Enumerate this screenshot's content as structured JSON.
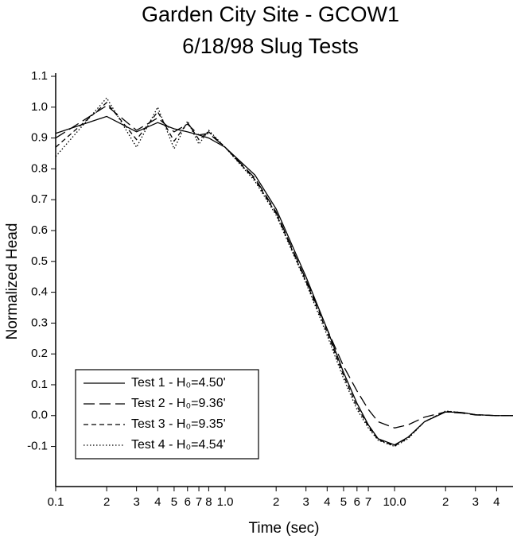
{
  "chart_data": {
    "type": "line",
    "title": "Garden City Site - GCOW1",
    "subtitle": "6/18/98 Slug Tests",
    "xlabel": "Time (sec)",
    "ylabel": "Normalized Head",
    "xscale": "log",
    "xlim": [
      0.1,
      50
    ],
    "ylim": [
      -0.23,
      1.1
    ],
    "xticks": [
      0.1,
      {
        "value": 0.2,
        "label": "2"
      },
      {
        "value": 0.3,
        "label": "3"
      },
      {
        "value": 0.4,
        "label": "4"
      },
      {
        "value": 0.5,
        "label": "5"
      },
      {
        "value": 0.6,
        "label": "6"
      },
      {
        "value": 0.7,
        "label": "7"
      },
      {
        "value": 0.8,
        "label": "8"
      },
      {
        "value": 1,
        "label": "1.0"
      },
      2,
      3,
      4,
      5,
      6,
      7,
      {
        "value": 10,
        "label": "10.0"
      },
      {
        "value": 20,
        "label": "2"
      },
      {
        "value": 30,
        "label": "3"
      },
      {
        "value": 40,
        "label": "4"
      }
    ],
    "yticks": [
      1.1,
      {
        "value": 1,
        "label": "1.0"
      },
      0.9,
      0.8,
      0.7,
      0.6,
      0.5,
      0.4,
      0.3,
      0.2,
      0.1,
      {
        "value": 0,
        "label": "0.0"
      },
      -0.1
    ],
    "legend": "lower left",
    "x": [
      0.1,
      0.2,
      0.3,
      0.4,
      0.5,
      0.6,
      0.7,
      0.8,
      1,
      1.5,
      2,
      3,
      4,
      5,
      6,
      7,
      8,
      10,
      12,
      15,
      20,
      25,
      30,
      40,
      50
    ],
    "series": [
      {
        "name": "Test 1 - H₀=4.50'",
        "color": "#000000",
        "style": "solid",
        "values": [
          0.915,
          0.97,
          0.92,
          0.95,
          0.93,
          0.92,
          0.91,
          0.9,
          0.87,
          0.78,
          0.67,
          0.45,
          0.28,
          0.14,
          0.04,
          -0.03,
          -0.075,
          -0.095,
          -0.07,
          -0.02,
          0.012,
          0.01,
          0.003,
          0,
          0
        ]
      },
      {
        "name": "Test 2 - H₀=9.36'",
        "color": "#000000",
        "style": "dashed",
        "values": [
          0.9,
          1.005,
          0.925,
          0.965,
          0.92,
          0.945,
          0.91,
          0.915,
          0.87,
          0.77,
          0.66,
          0.44,
          0.28,
          0.16,
          0.08,
          0.02,
          -0.02,
          -0.04,
          -0.03,
          -0.005,
          0.012,
          0.008,
          0.002,
          0,
          0
        ]
      },
      {
        "name": "Test 3 - H₀=9.35'",
        "color": "#000000",
        "style": "short-dashed",
        "values": [
          0.87,
          1.015,
          0.895,
          0.985,
          0.89,
          0.95,
          0.895,
          0.92,
          0.87,
          0.765,
          0.655,
          0.435,
          0.27,
          0.13,
          0.03,
          -0.035,
          -0.078,
          -0.098,
          -0.072,
          -0.02,
          0.014,
          0.01,
          0.003,
          0,
          0
        ]
      },
      {
        "name": "Test 4 - H₀=4.54'",
        "color": "#000000",
        "style": "dotted",
        "values": [
          0.84,
          1.03,
          0.87,
          1.0,
          0.865,
          0.955,
          0.88,
          0.925,
          0.87,
          0.76,
          0.65,
          0.43,
          0.26,
          0.12,
          0.02,
          -0.04,
          -0.08,
          -0.1,
          -0.075,
          -0.02,
          0.015,
          0.01,
          0.003,
          0,
          0
        ]
      }
    ]
  }
}
